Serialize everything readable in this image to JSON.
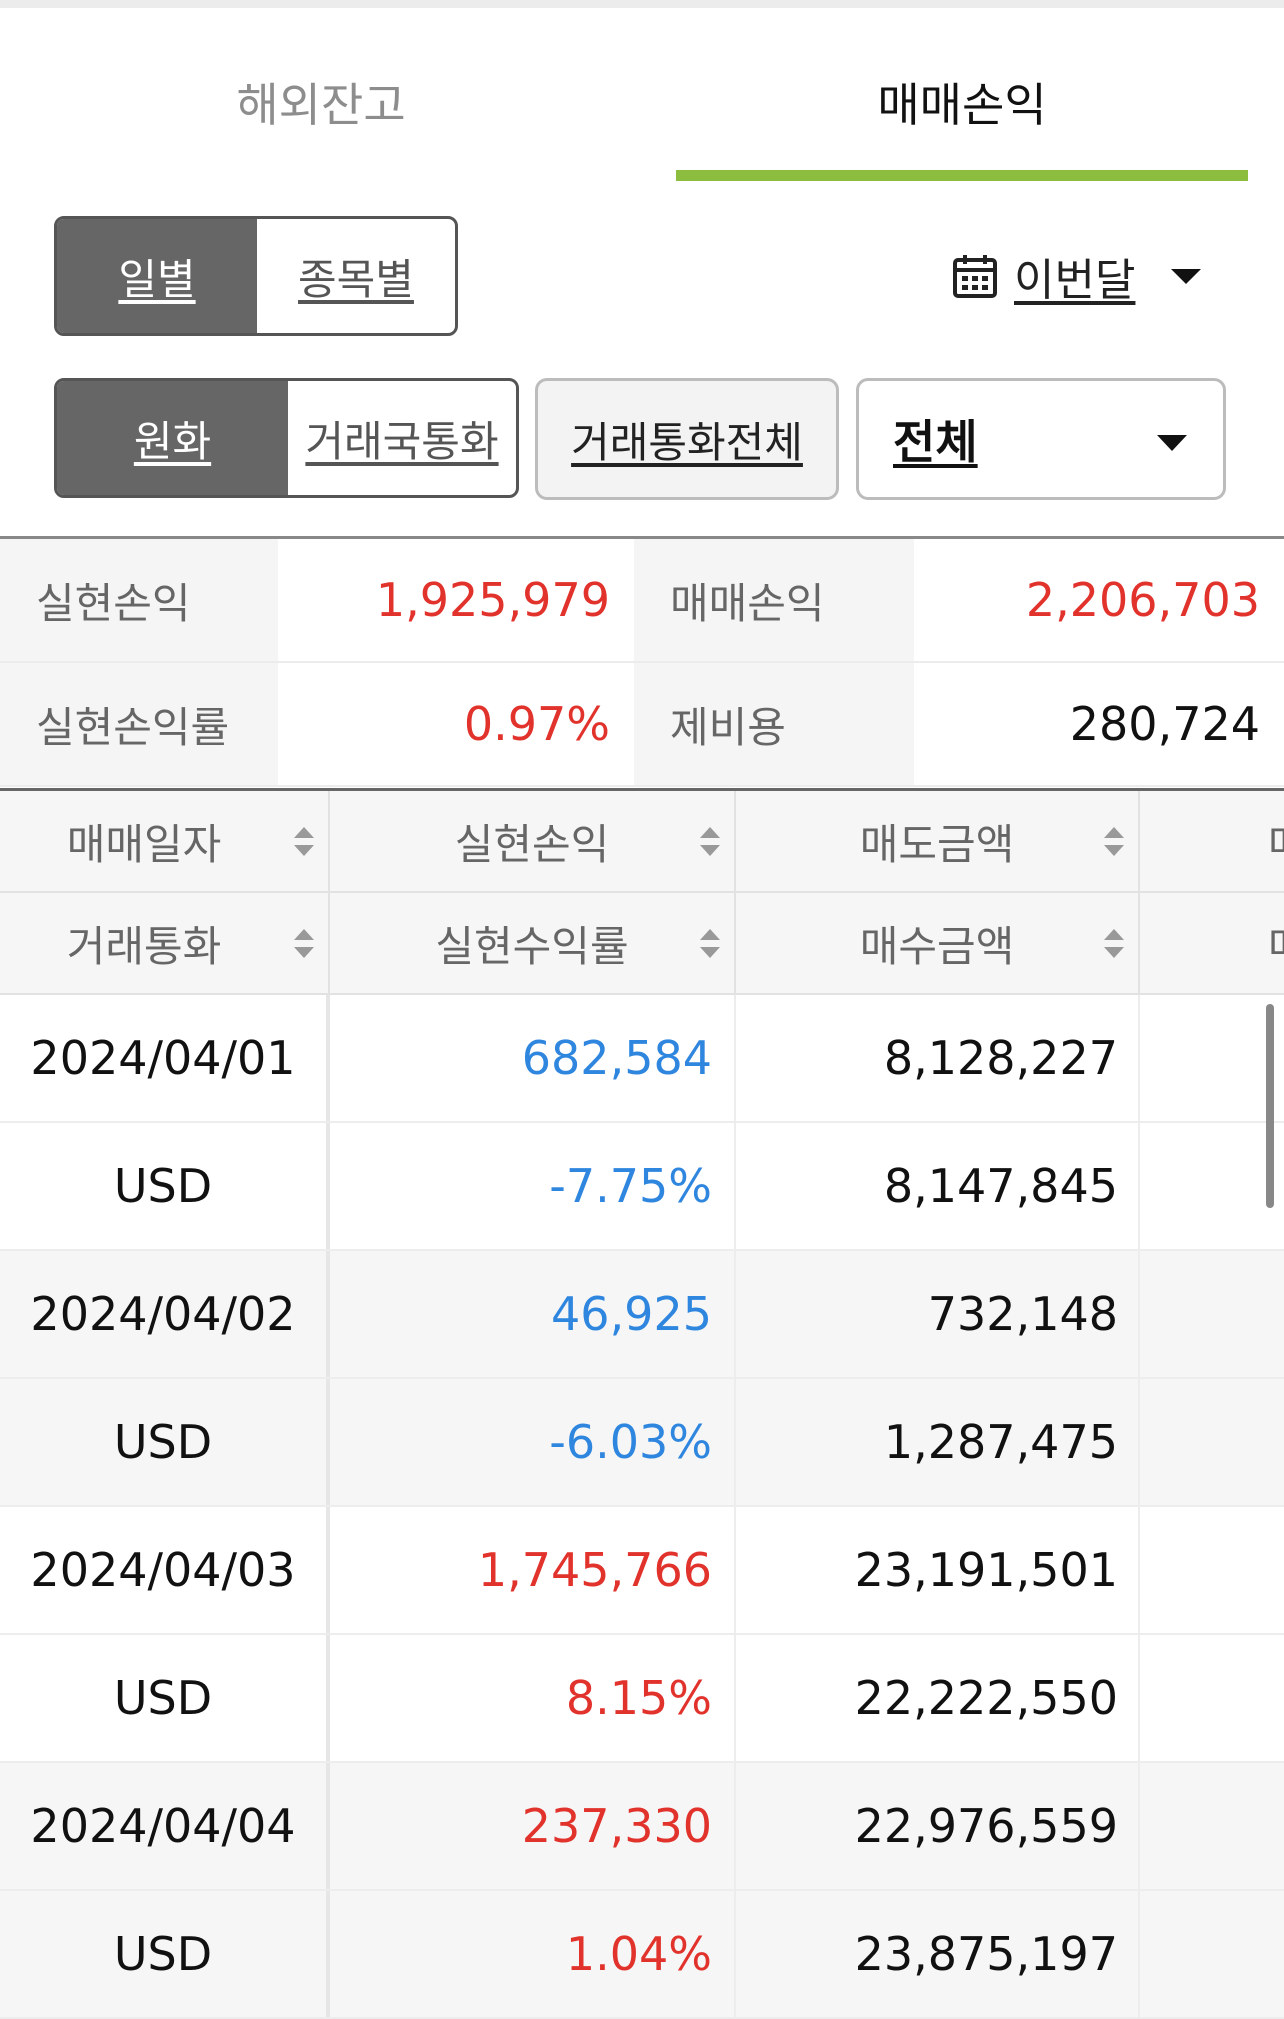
{
  "tabs": {
    "left": "해외잔고",
    "right": "매매손익"
  },
  "view_toggle": {
    "daily": "일별",
    "by_item": "종목별"
  },
  "period": {
    "label": "이번달"
  },
  "currency_toggle": {
    "krw": "원화",
    "local": "거래국통화"
  },
  "all_currency_button": "거래통화전체",
  "filter_select": {
    "value": "전체"
  },
  "summary": {
    "realized_pl_label": "실현손익",
    "realized_pl_value": "1,925,979",
    "trade_pl_label": "매매손익",
    "trade_pl_value": "2,206,703",
    "realized_rate_label": "실현손익률",
    "realized_rate_value": "0.97%",
    "fees_label": "제비용",
    "fees_value": "280,724"
  },
  "table": {
    "headers": {
      "trade_date": "매매일자",
      "realized_pl": "실현손익",
      "sell_amount": "매도금액",
      "col4_top": "매",
      "currency": "거래통화",
      "realized_rate": "실현수익률",
      "buy_amount": "매수금액",
      "col4_bottom": "매"
    },
    "rows": [
      {
        "date": "2024/04/01",
        "currency": "USD",
        "pl": "682,584",
        "rate": "-7.75%",
        "sell": "8,128,227",
        "buy": "8,147,845",
        "color": "#2f86df"
      },
      {
        "date": "2024/04/02",
        "currency": "USD",
        "pl": "46,925",
        "rate": "-6.03%",
        "sell": "732,148",
        "buy": "1,287,475",
        "color": "#2f86df"
      },
      {
        "date": "2024/04/03",
        "currency": "USD",
        "pl": "1,745,766",
        "rate": "8.15%",
        "sell": "23,191,501",
        "buy": "22,222,550",
        "color": "#e1322c"
      },
      {
        "date": "2024/04/04",
        "currency": "USD",
        "pl": "237,330",
        "rate": "1.04%",
        "sell": "22,976,559",
        "buy": "23,875,197",
        "color": "#e1322c"
      }
    ]
  }
}
